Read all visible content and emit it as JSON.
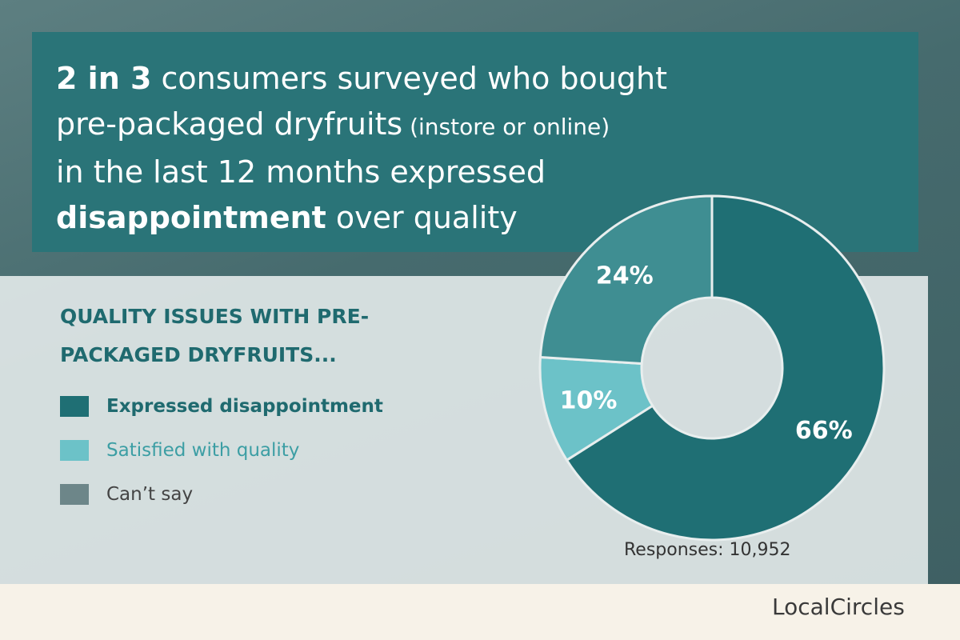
{
  "headline": [
    "2 in 3",
    " consumers surveyed who bought",
    "pre-packaged dryfruits",
    " (instore or online)",
    "in the last 12 months expressed",
    "disappointment",
    " over quality"
  ],
  "chart_data": {
    "type": "donut",
    "title": "QUALITY ISSUES WITH PRE-PACKAGED DRYFRUITS...",
    "categories": [
      "Expressed disappointment",
      "Satisfied with quality",
      "Can’t say"
    ],
    "values": [
      66,
      10,
      24
    ],
    "value_labels": [
      "66%",
      "10%",
      "24%"
    ],
    "colors": [
      "#1f6f74",
      "#6cc2c8",
      "#3f8e92"
    ],
    "legend_colors": [
      "#1f6f74",
      "#6cc2c8",
      "#6d8689"
    ],
    "note": "Responses: 10,952"
  },
  "logo": "LocalCircles"
}
